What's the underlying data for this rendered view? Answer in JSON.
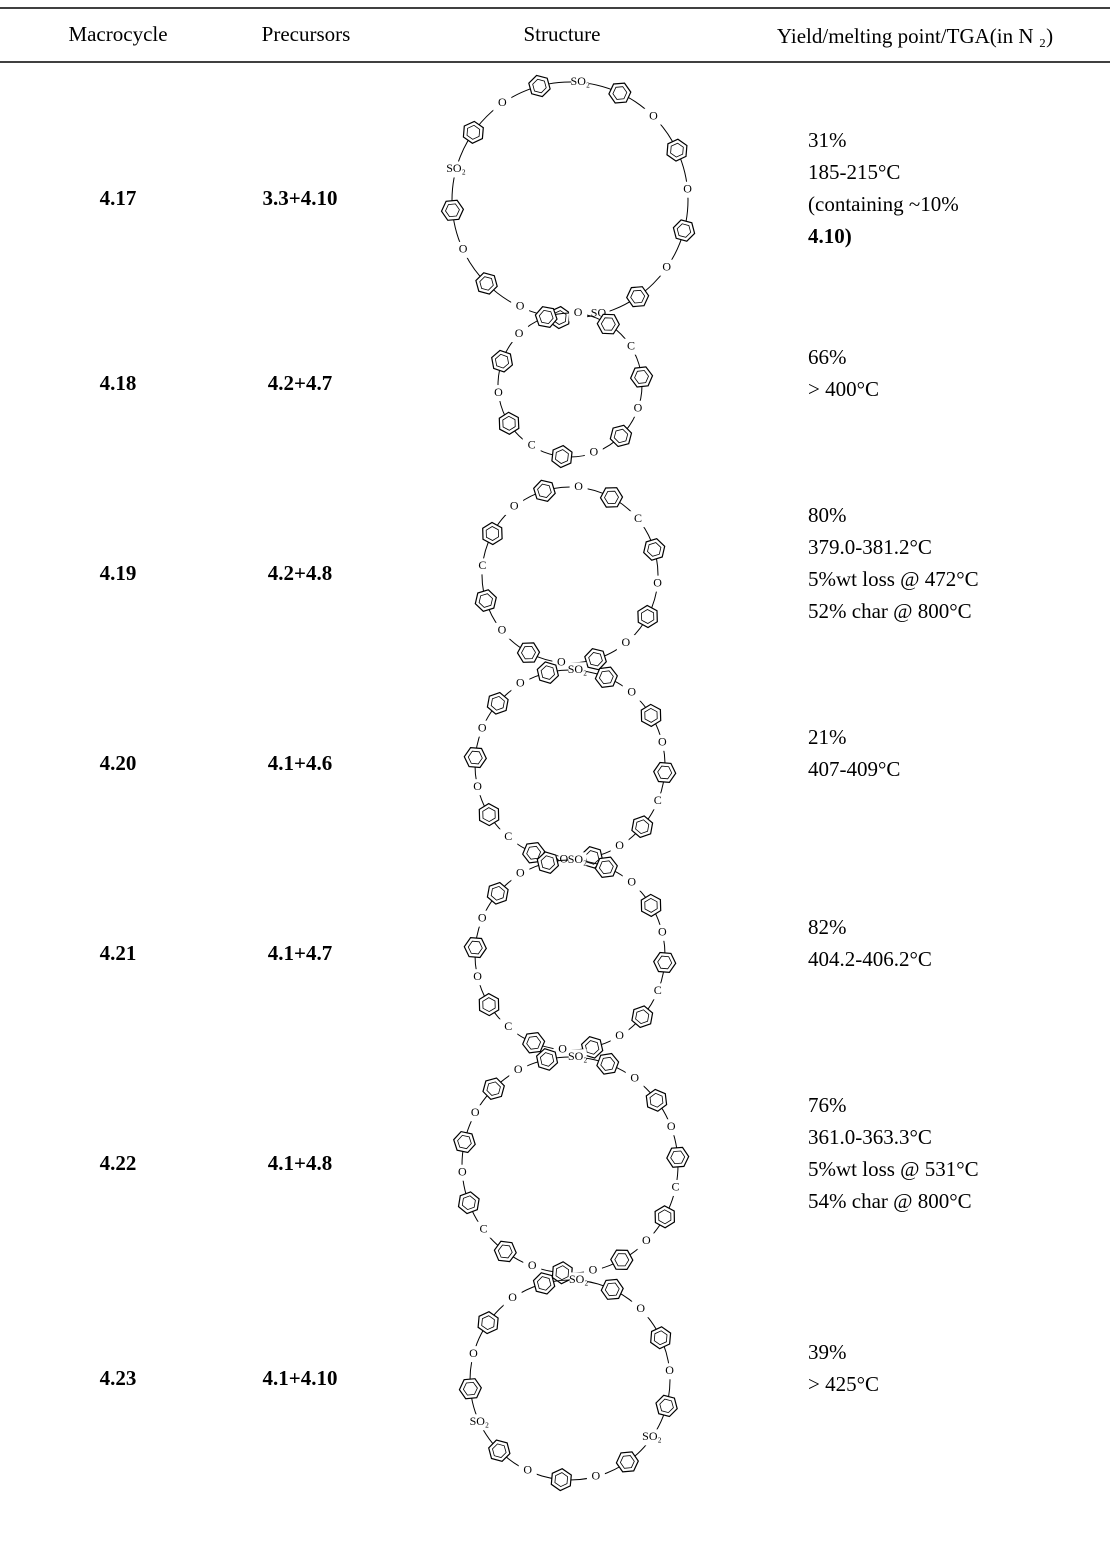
{
  "table": {
    "header": [
      "Macrocycle",
      "Precursors",
      "Structure",
      "Yield/melting point/TGA(in N ₂)"
    ],
    "rows": [
      {
        "macrocycle": "4.17",
        "precursors": "3.3+4.10",
        "structure": [
          "SO₂",
          "O",
          "O",
          "O",
          "SO₂",
          "O",
          "O",
          "SO₂",
          "O"
        ],
        "yield": [
          "31%",
          "185-215°C",
          "(containing ~10%",
          "4.10)"
        ]
      },
      {
        "macrocycle": "4.18",
        "precursors": "4.2+4.7",
        "structure": [
          "O",
          "C",
          "O",
          "O",
          "C",
          "O",
          "O"
        ],
        "yield": [
          "66%",
          "> 400°C"
        ]
      },
      {
        "macrocycle": "4.19",
        "precursors": "4.2+4.8",
        "structure": [
          "O",
          "C",
          "O",
          "O",
          "O",
          "O",
          "C",
          "O"
        ],
        "yield": [
          "80%",
          "379.0-381.2°C",
          "5%wt loss @ 472°C",
          "52% char @ 800°C"
        ]
      },
      {
        "macrocycle": "4.20",
        "precursors": "4.1+4.6",
        "structure": [
          "SO₂",
          "O",
          "O",
          "C",
          "O",
          "SO₂",
          "C",
          "O",
          "O",
          "O"
        ],
        "yield": [
          "21%",
          "407-409°C"
        ]
      },
      {
        "macrocycle": "4.21",
        "precursors": "4.1+4.7",
        "structure": [
          "SO₂",
          "O",
          "O",
          "C",
          "O",
          "O",
          "C",
          "O",
          "O",
          "O"
        ],
        "yield": [
          "82%",
          "404.2-406.2°C"
        ]
      },
      {
        "macrocycle": "4.22",
        "precursors": "4.1+4.8",
        "structure": [
          "SO₂",
          "O",
          "O",
          "C",
          "O",
          "O",
          "O",
          "C",
          "O",
          "O",
          "O"
        ],
        "yield": [
          "76%",
          "361.0-363.3°C",
          "5%wt loss @ 531°C",
          "54% char @ 800°C"
        ]
      },
      {
        "macrocycle": "4.23",
        "precursors": "4.1+4.10",
        "structure": [
          "SO₂",
          "O",
          "O",
          "SO₂",
          "O",
          "O",
          "SO₂",
          "O",
          "O"
        ],
        "yield": [
          "39%",
          "> 425°C"
        ]
      }
    ]
  }
}
